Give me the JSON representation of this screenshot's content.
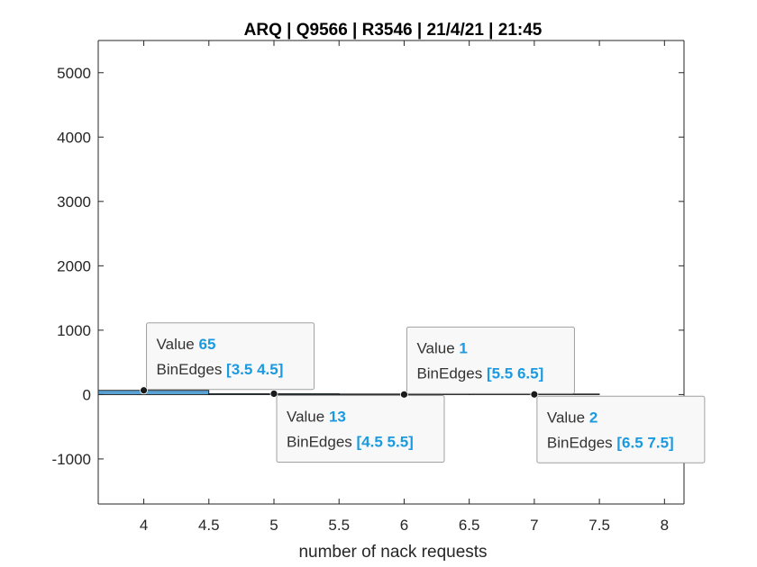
{
  "chart_data": {
    "type": "bar",
    "title": "ARQ | Q9566 | R3546 | 21/4/21 | 21:45",
    "xlabel": "number of nack requests",
    "ylabel": "",
    "xlim": [
      3.65,
      8.15
    ],
    "ylim": [
      -1700,
      5500
    ],
    "xticks": [
      4,
      4.5,
      5,
      5.5,
      6,
      6.5,
      7,
      7.5,
      8
    ],
    "xtick_labels": [
      "4",
      "4.5",
      "5",
      "5.5",
      "6",
      "6.5",
      "7",
      "7.5",
      "8"
    ],
    "yticks": [
      -1000,
      0,
      1000,
      2000,
      3000,
      4000,
      5000
    ],
    "ytick_labels": [
      "-1000",
      "0",
      "1000",
      "2000",
      "3000",
      "4000",
      "5000"
    ],
    "grid": false,
    "bins": [
      {
        "edges": [
          3.5,
          4.5
        ],
        "value": 65
      },
      {
        "edges": [
          4.5,
          5.5
        ],
        "value": 13
      },
      {
        "edges": [
          5.5,
          6.5
        ],
        "value": 1
      },
      {
        "edges": [
          6.5,
          7.5
        ],
        "value": 2
      }
    ],
    "datatips": [
      {
        "value_label": "Value",
        "value": "65",
        "edges_label": "BinEdges",
        "edges": "[3.5 4.5]",
        "x": 4,
        "y": 65,
        "placement": "above-right"
      },
      {
        "value_label": "Value",
        "value": "13",
        "edges_label": "BinEdges",
        "edges": "[4.5 5.5]",
        "x": 5,
        "y": 13,
        "placement": "below-right"
      },
      {
        "value_label": "Value",
        "value": "1",
        "edges_label": "BinEdges",
        "edges": "[5.5 6.5]",
        "x": 6,
        "y": 1,
        "placement": "above-right"
      },
      {
        "value_label": "Value",
        "value": "2",
        "edges_label": "BinEdges",
        "edges": "[6.5 7.5]",
        "x": 7,
        "y": 2,
        "placement": "below-right"
      }
    ],
    "colors": {
      "bar_fill": "#0072BD",
      "bar_edge": "#000000",
      "tip_value": "#1a9ae0",
      "axis": "#262626"
    }
  }
}
